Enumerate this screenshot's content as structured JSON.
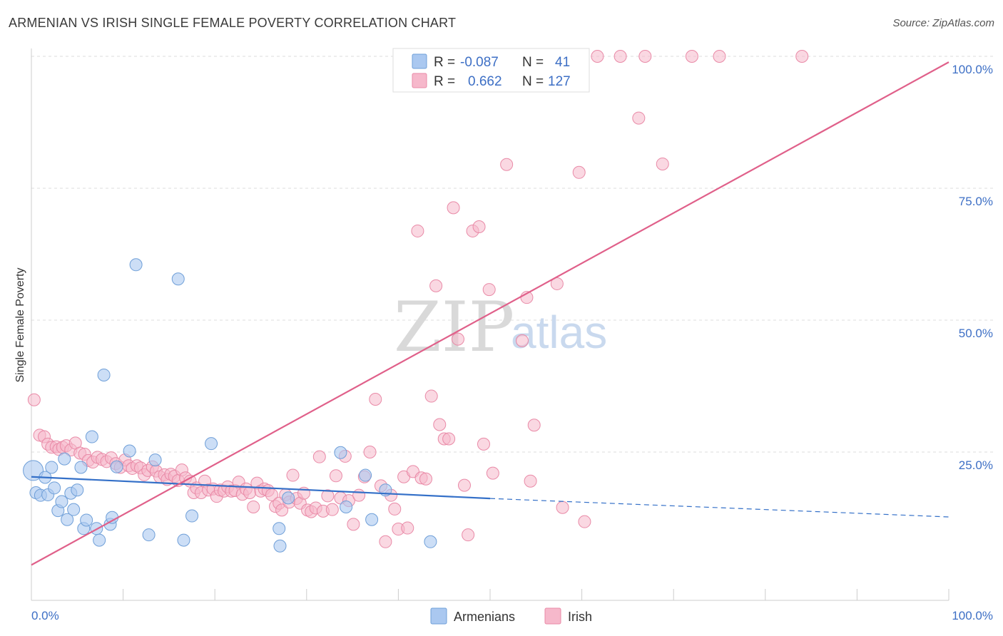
{
  "title": "ARMENIAN VS IRISH SINGLE FEMALE POVERTY CORRELATION CHART",
  "source": "Source: ZipAtlas.com",
  "watermark": {
    "zip": "ZIP",
    "atlas": "atlas"
  },
  "colors": {
    "armenian_fill": "#aac8f0",
    "armenian_stroke": "#6f9fd8",
    "armenian_line": "#3470c8",
    "irish_fill": "#f6b8cb",
    "irish_stroke": "#e98aa7",
    "irish_line": "#e0608a",
    "tick_text": "#3d6fc5",
    "grid": "#dddddd"
  },
  "legend": {
    "r_label": "R =",
    "n_label": "N =",
    "rows": [
      {
        "series": "Armenians",
        "r": "-0.087",
        "n": "41"
      },
      {
        "series": "Irish",
        "r": "0.662",
        "n": "127"
      }
    ]
  },
  "bottom_legend": [
    "Armenians",
    "Irish"
  ],
  "chart_data": {
    "type": "scatter",
    "title": "ARMENIAN VS IRISH SINGLE FEMALE POVERTY CORRELATION CHART",
    "xlabel": "",
    "ylabel": "Single Female Poverty",
    "xlim": [
      0,
      100
    ],
    "ylim": [
      0,
      100
    ],
    "x_tick_labels": [
      "0.0%",
      "100.0%"
    ],
    "y_ticks": [
      25,
      50,
      75,
      100
    ],
    "y_tick_labels": [
      "25.0%",
      "50.0%",
      "75.0%",
      "100.0%"
    ],
    "grid": true,
    "legend_position": "top-center",
    "series": [
      {
        "name": "Armenians",
        "r": -0.087,
        "n": 41,
        "trend": {
          "x0": 0,
          "y0": 20.3,
          "x1": 50,
          "y1": 16.2,
          "dashed_to_x": 100,
          "dashed_to_y": 12.7
        },
        "points": [
          [
            0.2,
            21.5
          ],
          [
            0.5,
            17.3
          ],
          [
            1.0,
            16.8
          ],
          [
            1.5,
            20.2
          ],
          [
            1.8,
            16.9
          ],
          [
            2.2,
            22.1
          ],
          [
            2.5,
            18.2
          ],
          [
            2.9,
            13.9
          ],
          [
            3.3,
            15.6
          ],
          [
            3.6,
            23.7
          ],
          [
            3.9,
            12.2
          ],
          [
            4.3,
            17.2
          ],
          [
            4.6,
            14.1
          ],
          [
            5.0,
            17.8
          ],
          [
            5.4,
            22.1
          ],
          [
            5.7,
            10.5
          ],
          [
            6.0,
            12.1
          ],
          [
            6.6,
            27.9
          ],
          [
            7.1,
            10.5
          ],
          [
            7.4,
            8.3
          ],
          [
            7.9,
            39.6
          ],
          [
            8.6,
            11.3
          ],
          [
            8.8,
            12.6
          ],
          [
            9.3,
            22.2
          ],
          [
            10.7,
            25.2
          ],
          [
            11.4,
            60.5
          ],
          [
            12.8,
            9.3
          ],
          [
            13.5,
            23.5
          ],
          [
            16.0,
            57.8
          ],
          [
            16.6,
            8.3
          ],
          [
            17.5,
            12.9
          ],
          [
            19.6,
            26.6
          ],
          [
            27.0,
            10.5
          ],
          [
            27.1,
            7.2
          ],
          [
            28.0,
            16.3
          ],
          [
            33.7,
            24.9
          ],
          [
            34.3,
            14.6
          ],
          [
            36.4,
            20.6
          ],
          [
            37.1,
            12.2
          ],
          [
            38.6,
            17.8
          ],
          [
            43.5,
            8.0
          ]
        ]
      },
      {
        "name": "Irish",
        "r": 0.662,
        "n": 127,
        "trend": {
          "x0": 0,
          "y0": 3.6,
          "x1": 100,
          "y1": 98.9
        },
        "points": [
          [
            0.3,
            34.9
          ],
          [
            0.9,
            28.2
          ],
          [
            1.4,
            27.9
          ],
          [
            1.8,
            26.5
          ],
          [
            2.2,
            25.9
          ],
          [
            2.7,
            26.0
          ],
          [
            3.0,
            25.5
          ],
          [
            3.4,
            25.9
          ],
          [
            3.8,
            26.2
          ],
          [
            4.3,
            25.4
          ],
          [
            4.8,
            26.7
          ],
          [
            5.3,
            24.8
          ],
          [
            5.8,
            24.6
          ],
          [
            6.2,
            23.4
          ],
          [
            6.7,
            23.1
          ],
          [
            7.2,
            24.0
          ],
          [
            7.7,
            23.6
          ],
          [
            8.2,
            23.2
          ],
          [
            8.7,
            23.9
          ],
          [
            9.2,
            22.8
          ],
          [
            9.7,
            22.1
          ],
          [
            10.2,
            23.5
          ],
          [
            10.6,
            22.4
          ],
          [
            11.0,
            21.9
          ],
          [
            11.5,
            22.4
          ],
          [
            11.9,
            22.0
          ],
          [
            12.3,
            20.7
          ],
          [
            12.7,
            21.5
          ],
          [
            13.2,
            22.2
          ],
          [
            13.6,
            21.4
          ],
          [
            14.0,
            20.3
          ],
          [
            14.5,
            20.7
          ],
          [
            14.8,
            19.8
          ],
          [
            15.2,
            20.8
          ],
          [
            15.6,
            20.4
          ],
          [
            16.0,
            19.6
          ],
          [
            16.4,
            21.6
          ],
          [
            16.8,
            20.1
          ],
          [
            17.3,
            19.5
          ],
          [
            17.7,
            17.3
          ],
          [
            18.0,
            18.2
          ],
          [
            18.5,
            17.3
          ],
          [
            18.9,
            19.5
          ],
          [
            19.3,
            17.8
          ],
          [
            19.8,
            18.0
          ],
          [
            20.2,
            16.6
          ],
          [
            20.6,
            17.8
          ],
          [
            21.0,
            17.6
          ],
          [
            21.4,
            18.4
          ],
          [
            21.8,
            17.6
          ],
          [
            22.2,
            17.7
          ],
          [
            22.6,
            19.3
          ],
          [
            23.0,
            17.0
          ],
          [
            23.4,
            18.0
          ],
          [
            23.8,
            17.3
          ],
          [
            24.2,
            14.6
          ],
          [
            24.6,
            19.1
          ],
          [
            25.0,
            17.6
          ],
          [
            25.4,
            18.0
          ],
          [
            25.8,
            17.7
          ],
          [
            26.2,
            16.9
          ],
          [
            26.6,
            14.7
          ],
          [
            27.0,
            15.3
          ],
          [
            27.3,
            14.0
          ],
          [
            27.7,
            16.9
          ],
          [
            28.1,
            15.5
          ],
          [
            28.5,
            20.6
          ],
          [
            28.9,
            16.2
          ],
          [
            29.3,
            15.3
          ],
          [
            29.7,
            17.2
          ],
          [
            30.1,
            14.0
          ],
          [
            30.5,
            13.7
          ],
          [
            31.0,
            14.4
          ],
          [
            31.4,
            24.1
          ],
          [
            31.8,
            13.8
          ],
          [
            32.3,
            16.7
          ],
          [
            32.8,
            14.1
          ],
          [
            33.2,
            20.5
          ],
          [
            33.7,
            16.3
          ],
          [
            34.2,
            24.2
          ],
          [
            34.6,
            15.8
          ],
          [
            35.1,
            11.3
          ],
          [
            35.7,
            16.8
          ],
          [
            36.3,
            20.3
          ],
          [
            36.9,
            25.0
          ],
          [
            37.5,
            35.0
          ],
          [
            38.1,
            18.6
          ],
          [
            38.6,
            8.0
          ],
          [
            39.2,
            16.8
          ],
          [
            39.6,
            14.2
          ],
          [
            40.0,
            10.4
          ],
          [
            40.6,
            20.3
          ],
          [
            41.0,
            10.6
          ],
          [
            41.6,
            21.3
          ],
          [
            42.1,
            66.9
          ],
          [
            42.5,
            20.1
          ],
          [
            43.0,
            19.9
          ],
          [
            43.6,
            35.6
          ],
          [
            44.1,
            56.5
          ],
          [
            44.5,
            30.2
          ],
          [
            45.0,
            27.5
          ],
          [
            45.5,
            27.5
          ],
          [
            46.0,
            71.3
          ],
          [
            46.5,
            46.4
          ],
          [
            47.2,
            18.7
          ],
          [
            47.6,
            9.3
          ],
          [
            48.1,
            66.9
          ],
          [
            48.8,
            67.7
          ],
          [
            49.3,
            26.5
          ],
          [
            49.9,
            55.8
          ],
          [
            50.3,
            21.0
          ],
          [
            51.8,
            79.5
          ],
          [
            53.5,
            46.1
          ],
          [
            54.0,
            54.3
          ],
          [
            54.8,
            30.1
          ],
          [
            54.4,
            19.5
          ],
          [
            57.3,
            56.9
          ],
          [
            57.9,
            14.5
          ],
          [
            59.7,
            78.0
          ],
          [
            60.3,
            11.8
          ],
          [
            61.7,
            100
          ],
          [
            64.2,
            100
          ],
          [
            66.2,
            88.3
          ],
          [
            66.9,
            100
          ],
          [
            68.8,
            79.6
          ],
          [
            72.0,
            100
          ],
          [
            75.0,
            100
          ],
          [
            84.0,
            100
          ],
          [
            56.0,
            100
          ]
        ]
      }
    ]
  }
}
